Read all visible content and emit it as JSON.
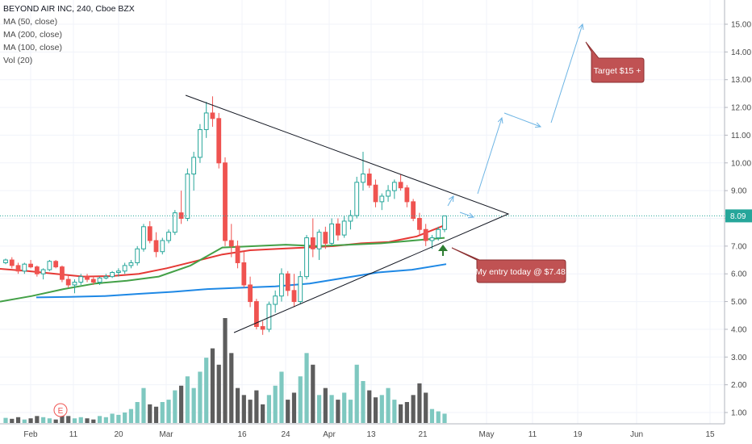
{
  "header": {
    "title": "BEYOND AIR INC, 240, Cboe BZX",
    "indicators": [
      "MA (50, close)",
      "MA (200, close)",
      "MA (100, close)",
      "Vol (20)"
    ]
  },
  "colors": {
    "up": "#26a69a",
    "down": "#ef5350",
    "up_vol": "#7ec8c0",
    "down_vol": "#5d5d5d",
    "ma50": "#e53935",
    "ma100": "#43a047",
    "ma200": "#1e88e5",
    "price_line": "#26a69a",
    "annotation_bg": "#c05253",
    "arrow_blue": "#6cb4e4",
    "entry_arrow": "#2e7d32"
  },
  "chart_data": {
    "type": "candlestick",
    "y_axis": {
      "range": [
        0.7,
        16.0
      ],
      "ticks": [
        "1.00",
        "2.00",
        "3.00",
        "4.00",
        "5.00",
        "6.00",
        "7.00",
        "8.00",
        "9.00",
        "10.00",
        "11.00",
        "12.00",
        "13.00",
        "14.00",
        "15.00"
      ]
    },
    "x_axis": {
      "ticks": [
        "Feb",
        "11",
        "20",
        "Mar",
        "16",
        "24",
        "Apr",
        "13",
        "21",
        "May",
        "11",
        "19",
        "Jun",
        "15"
      ]
    },
    "last_price": "8.09",
    "candles": [
      [
        6.4,
        6.55,
        6.35,
        6.5
      ],
      [
        6.5,
        6.6,
        6.2,
        6.3
      ],
      [
        6.3,
        6.4,
        6.0,
        6.1
      ],
      [
        6.1,
        6.4,
        6.0,
        6.35
      ],
      [
        6.35,
        6.5,
        6.2,
        6.25
      ],
      [
        6.25,
        6.3,
        5.9,
        6.0
      ],
      [
        6.0,
        6.2,
        5.8,
        6.15
      ],
      [
        6.15,
        6.5,
        6.1,
        6.45
      ],
      [
        6.45,
        6.5,
        6.2,
        6.25
      ],
      [
        6.25,
        6.3,
        5.7,
        5.8
      ],
      [
        5.8,
        5.95,
        5.5,
        5.6
      ],
      [
        5.6,
        5.8,
        5.3,
        5.7
      ],
      [
        5.7,
        6.0,
        5.6,
        5.9
      ],
      [
        5.9,
        6.0,
        5.7,
        5.8
      ],
      [
        5.8,
        5.9,
        5.6,
        5.7
      ],
      [
        5.7,
        5.9,
        5.6,
        5.85
      ],
      [
        5.85,
        6.0,
        5.8,
        5.9
      ],
      [
        5.9,
        6.1,
        5.85,
        6.05
      ],
      [
        6.05,
        6.2,
        5.9,
        6.1
      ],
      [
        6.1,
        6.4,
        6.0,
        6.3
      ],
      [
        6.3,
        6.5,
        6.2,
        6.4
      ],
      [
        6.4,
        7.0,
        6.3,
        6.9
      ],
      [
        6.9,
        7.8,
        6.8,
        7.7
      ],
      [
        7.7,
        7.9,
        7.1,
        7.2
      ],
      [
        7.2,
        7.5,
        6.6,
        6.8
      ],
      [
        6.8,
        7.3,
        6.7,
        7.2
      ],
      [
        7.2,
        7.6,
        7.1,
        7.5
      ],
      [
        7.5,
        8.3,
        7.4,
        8.2
      ],
      [
        8.2,
        9.0,
        7.8,
        8.0
      ],
      [
        8.0,
        9.8,
        7.9,
        9.6
      ],
      [
        9.6,
        10.4,
        9.0,
        10.2
      ],
      [
        10.2,
        11.4,
        10.0,
        11.2
      ],
      [
        11.2,
        12.2,
        10.9,
        11.8
      ],
      [
        11.8,
        12.4,
        11.3,
        11.6
      ],
      [
        11.6,
        11.8,
        9.8,
        10.0
      ],
      [
        10.0,
        10.2,
        7.0,
        7.2
      ],
      [
        7.2,
        7.8,
        6.6,
        7.0
      ],
      [
        7.0,
        7.2,
        6.2,
        6.4
      ],
      [
        6.4,
        6.8,
        5.5,
        5.6
      ],
      [
        5.6,
        5.9,
        4.8,
        5.0
      ],
      [
        5.0,
        5.1,
        4.0,
        4.1
      ],
      [
        4.1,
        4.3,
        3.8,
        4.0
      ],
      [
        4.0,
        5.0,
        3.9,
        4.9
      ],
      [
        4.9,
        5.4,
        4.6,
        5.2
      ],
      [
        5.2,
        6.2,
        5.0,
        6.0
      ],
      [
        6.0,
        6.1,
        5.2,
        5.4
      ],
      [
        5.4,
        6.0,
        4.8,
        5.0
      ],
      [
        5.0,
        6.1,
        4.9,
        5.9
      ],
      [
        5.9,
        7.4,
        5.8,
        7.3
      ],
      [
        7.3,
        8.0,
        6.6,
        6.9
      ],
      [
        6.9,
        7.6,
        6.5,
        7.5
      ],
      [
        7.5,
        7.7,
        6.9,
        7.1
      ],
      [
        7.1,
        8.0,
        7.0,
        7.8
      ],
      [
        7.8,
        8.0,
        7.2,
        7.4
      ],
      [
        7.4,
        8.1,
        7.3,
        7.9
      ],
      [
        7.9,
        8.3,
        7.6,
        8.1
      ],
      [
        8.1,
        9.5,
        8.0,
        9.3
      ],
      [
        9.3,
        10.4,
        9.0,
        9.6
      ],
      [
        9.6,
        9.8,
        9.1,
        9.2
      ],
      [
        9.2,
        9.4,
        8.4,
        8.6
      ],
      [
        8.6,
        8.9,
        8.3,
        8.8
      ],
      [
        8.8,
        9.2,
        8.6,
        9.0
      ],
      [
        9.0,
        9.4,
        8.7,
        9.3
      ],
      [
        9.3,
        9.6,
        9.0,
        9.1
      ],
      [
        9.1,
        9.2,
        8.4,
        8.6
      ],
      [
        8.6,
        8.7,
        7.9,
        8.0
      ],
      [
        8.0,
        8.2,
        7.4,
        7.6
      ],
      [
        7.6,
        7.8,
        7.0,
        7.2
      ],
      [
        7.2,
        7.4,
        6.9,
        7.3
      ],
      [
        7.3,
        7.7,
        7.2,
        7.6
      ],
      [
        7.6,
        8.1,
        7.5,
        8.09
      ]
    ],
    "volume": [
      0.22,
      0.18,
      0.25,
      0.15,
      0.2,
      0.3,
      0.25,
      0.2,
      0.15,
      0.35,
      0.3,
      0.2,
      0.25,
      0.2,
      0.15,
      0.3,
      0.25,
      0.4,
      0.35,
      0.45,
      0.6,
      0.9,
      1.5,
      0.8,
      0.7,
      0.9,
      1.0,
      1.4,
      1.6,
      2.0,
      1.5,
      2.2,
      2.8,
      3.2,
      2.5,
      4.5,
      3.0,
      1.5,
      1.2,
      1.0,
      1.4,
      0.8,
      1.2,
      1.6,
      2.2,
      1.0,
      1.3,
      2.0,
      3.0,
      2.5,
      1.2,
      1.5,
      1.2,
      1.0,
      1.3,
      1.0,
      2.5,
      1.8,
      1.4,
      1.1,
      1.2,
      1.5,
      1.0,
      0.8,
      0.9,
      1.2,
      1.7,
      1.3,
      0.6,
      0.5,
      0.4
    ],
    "moving_averages": [
      {
        "name": "MA (50, close)",
        "values": [
          6.18,
          6.1,
          6.0,
          5.9,
          5.92,
          6.0,
          6.2,
          6.45,
          6.7,
          6.85,
          6.9,
          6.95,
          7.0,
          7.1,
          7.15,
          7.35,
          7.75
        ]
      },
      {
        "name": "MA (100, close)",
        "values": [
          5.0,
          5.2,
          5.45,
          5.65,
          5.75,
          5.9,
          6.3,
          6.95,
          7.0,
          7.05,
          7.0,
          7.05,
          7.1,
          7.2,
          7.3
        ]
      },
      {
        "name": "MA (200, close)",
        "values": [
          5.15,
          5.17,
          5.2,
          5.28,
          5.35,
          5.45,
          5.5,
          5.55,
          5.65,
          5.85,
          6.05,
          6.15,
          6.35
        ]
      }
    ],
    "annotations": [
      {
        "id": "target",
        "text": "Target $15 +"
      },
      {
        "id": "entry",
        "text": "My entry today @ $7.48"
      },
      {
        "id": "earnings",
        "text": "E"
      }
    ]
  }
}
